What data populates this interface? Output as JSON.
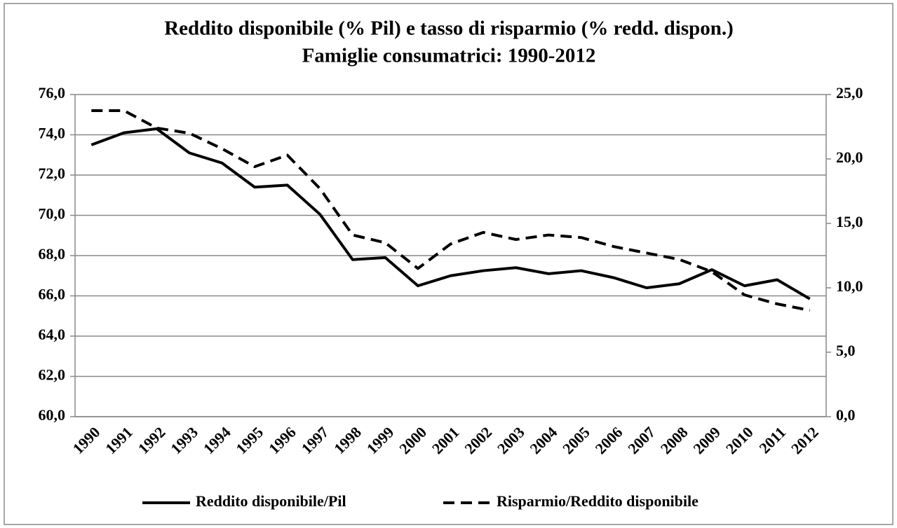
{
  "chart_data": {
    "type": "line",
    "title": "Reddito disponibile (% Pil) e tasso di risparmio (% redd. dispon.)",
    "subtitle": "Famiglie consumatrici: 1990-2012",
    "categories": [
      "1990",
      "1991",
      "1992",
      "1993",
      "1994",
      "1995",
      "1996",
      "1997",
      "1998",
      "1999",
      "2000",
      "2001",
      "2002",
      "2003",
      "2004",
      "2005",
      "2006",
      "2007",
      "2008",
      "2009",
      "2010",
      "2011",
      "2012"
    ],
    "series": [
      {
        "name": "Reddito disponibile/Pil",
        "color": "#000000",
        "dash": "solid",
        "values": [
          73.5,
          74.1,
          74.3,
          73.1,
          72.6,
          71.4,
          71.5,
          70.05,
          67.8,
          67.9,
          66.5,
          67.0,
          67.25,
          67.4,
          67.1,
          67.25,
          66.9,
          66.4,
          66.6,
          67.3,
          66.5,
          66.8,
          65.85
        ]
      },
      {
        "name": "Risparmio/Reddito disponibile",
        "color": "#000000",
        "dash": "dashed",
        "axis": "y2",
        "values": [
          23.75,
          23.75,
          22.4,
          22.0,
          20.8,
          19.4,
          20.3,
          17.7,
          14.1,
          13.5,
          11.5,
          13.4,
          14.3,
          13.75,
          14.1,
          13.9,
          13.2,
          12.7,
          12.2,
          11.25,
          9.45,
          8.75,
          8.25
        ]
      }
    ],
    "ylim": [
      60,
      76
    ],
    "yticks": [
      {
        "value": 60,
        "label": "60,0"
      },
      {
        "value": 62,
        "label": "62,0"
      },
      {
        "value": 64,
        "label": "64,0"
      },
      {
        "value": 66,
        "label": "66,0"
      },
      {
        "value": 68,
        "label": "68,0"
      },
      {
        "value": 70,
        "label": "70,0"
      },
      {
        "value": 72,
        "label": "72,0"
      },
      {
        "value": 74,
        "label": "74,0"
      },
      {
        "value": 76,
        "label": "76,0"
      }
    ],
    "y2lim": [
      0,
      25
    ],
    "y2ticks": [
      {
        "value": 0,
        "label": "0,0"
      },
      {
        "value": 5,
        "label": "5,0"
      },
      {
        "value": 10,
        "label": "10,0"
      },
      {
        "value": 15,
        "label": "15,0"
      },
      {
        "value": 20,
        "label": "20,0"
      },
      {
        "value": 25,
        "label": "25,0"
      }
    ],
    "grid": true,
    "legend": "bottom"
  }
}
